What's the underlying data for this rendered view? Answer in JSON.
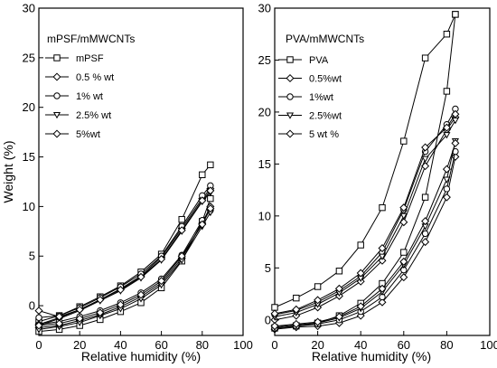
{
  "chart_data": [
    {
      "type": "line",
      "legend_title": "mPSF/mMWCNTs",
      "xlabel": "Relative humidity (%)",
      "ylabel": "Weight (%)",
      "xlim": [
        0,
        100
      ],
      "ylim": [
        -3,
        30
      ],
      "xticks": [
        0,
        20,
        40,
        60,
        80,
        100
      ],
      "yticks": [
        0,
        5,
        10,
        15,
        20,
        25,
        30
      ],
      "legend_placement": "top-left",
      "series": [
        {
          "name": "mPSF",
          "marker": "square",
          "adsorption": {
            "x": [
              0,
              10,
              20,
              30,
              40,
              50,
              60,
              70,
              80,
              84
            ],
            "y": [
              -2.6,
              -2.4,
              -2.0,
              -1.4,
              -0.6,
              0.3,
              1.8,
              4.5,
              8.5,
              10.8
            ]
          },
          "desorption": {
            "x": [
              84,
              80,
              70,
              60,
              50,
              40,
              30,
              20,
              10,
              0
            ],
            "y": [
              14.2,
              13.2,
              8.7,
              5.2,
              3.4,
              2.0,
              0.9,
              -0.1,
              -1.0,
              -1.6
            ]
          }
        },
        {
          "name": "0.5 % wt",
          "marker": "diamond",
          "adsorption": {
            "x": [
              0,
              10,
              20,
              30,
              40,
              50,
              60,
              70,
              80,
              84
            ],
            "y": [
              -2.2,
              -2.0,
              -1.5,
              -0.9,
              -0.1,
              0.9,
              2.3,
              4.8,
              8.3,
              10.0
            ]
          },
          "desorption": {
            "x": [
              84,
              80,
              70,
              60,
              50,
              40,
              30,
              20,
              10,
              0
            ],
            "y": [
              11.8,
              10.8,
              7.8,
              4.9,
              3.0,
              1.7,
              0.6,
              -0.4,
              -1.2,
              -1.9
            ]
          }
        },
        {
          "name": "1% wt",
          "marker": "circle",
          "adsorption": {
            "x": [
              0,
              10,
              20,
              30,
              40,
              50,
              60,
              70,
              80,
              84
            ],
            "y": [
              -1.9,
              -1.6,
              -1.1,
              -0.5,
              0.3,
              1.3,
              2.7,
              5.1,
              8.6,
              9.6
            ]
          },
          "desorption": {
            "x": [
              84,
              80,
              70,
              60,
              50,
              40,
              30,
              20,
              10,
              0
            ],
            "y": [
              12.1,
              11.1,
              8.0,
              5.0,
              3.2,
              1.9,
              0.8,
              -0.2,
              -1.0,
              -1.2
            ]
          }
        },
        {
          "name": "2.5% wt",
          "marker": "triangle-down",
          "adsorption": {
            "x": [
              0,
              10,
              20,
              30,
              40,
              50,
              60,
              70,
              80,
              84
            ],
            "y": [
              -2.4,
              -2.1,
              -1.7,
              -1.0,
              -0.3,
              0.7,
              2.1,
              4.6,
              8.0,
              9.4
            ]
          },
          "desorption": {
            "x": [
              84,
              80,
              70,
              60,
              50,
              40,
              30,
              20,
              10,
              0
            ],
            "y": [
              11.4,
              10.5,
              7.5,
              4.6,
              2.8,
              1.5,
              0.5,
              -0.5,
              -1.3,
              -2.0
            ]
          }
        },
        {
          "name": "5%wt",
          "marker": "diamond",
          "adsorption": {
            "x": [
              0,
              10,
              20,
              30,
              40,
              50,
              60,
              70,
              80,
              84
            ],
            "y": [
              -2.0,
              -1.8,
              -1.3,
              -0.7,
              0.1,
              1.1,
              2.5,
              5.0,
              8.2,
              9.8
            ]
          },
          "desorption": {
            "x": [
              84,
              80,
              70,
              60,
              50,
              40,
              30,
              20,
              10,
              0
            ],
            "y": [
              11.6,
              10.6,
              7.6,
              4.7,
              2.9,
              1.6,
              0.6,
              -0.4,
              -1.1,
              -0.5
            ]
          }
        }
      ]
    },
    {
      "type": "line",
      "legend_title": "PVA/mMWCNTs",
      "xlabel": "Relative humidity (%)",
      "ylabel": "",
      "xlim": [
        0,
        100
      ],
      "ylim": [
        -1.5,
        30
      ],
      "xticks": [
        0,
        20,
        40,
        60,
        80,
        100
      ],
      "yticks": [
        0,
        5,
        10,
        15,
        20,
        25,
        30
      ],
      "legend_placement": "top-left",
      "series": [
        {
          "name": "PVA",
          "marker": "square",
          "adsorption": {
            "x": [
              0,
              10,
              20,
              30,
              40,
              50,
              60,
              70,
              80,
              84
            ],
            "y": [
              -0.8,
              -0.6,
              -0.3,
              0.4,
              1.6,
              3.5,
              6.5,
              11.8,
              22.0,
              29.4
            ]
          },
          "desorption": {
            "x": [
              84,
              80,
              70,
              60,
              50,
              40,
              30,
              20,
              10,
              0
            ],
            "y": [
              29.4,
              27.5,
              25.2,
              17.2,
              10.8,
              7.2,
              4.7,
              3.2,
              2.1,
              1.2
            ]
          }
        },
        {
          "name": "0.5%wt",
          "marker": "diamond",
          "adsorption": {
            "x": [
              0,
              10,
              20,
              30,
              40,
              50,
              60,
              70,
              80,
              84
            ],
            "y": [
              -0.9,
              -0.7,
              -0.6,
              -0.3,
              0.4,
              1.7,
              4.1,
              7.5,
              11.8,
              15.7
            ]
          },
          "desorption": {
            "x": [
              84,
              80,
              70,
              60,
              50,
              40,
              30,
              20,
              10,
              0
            ],
            "y": [
              19.5,
              18.3,
              14.8,
              9.4,
              5.7,
              3.7,
              2.3,
              1.2,
              0.4,
              0.0
            ]
          }
        },
        {
          "name": "1%wt",
          "marker": "circle",
          "adsorption": {
            "x": [
              0,
              10,
              20,
              30,
              40,
              50,
              60,
              70,
              80,
              84
            ],
            "y": [
              -0.8,
              -0.6,
              -0.4,
              0.0,
              0.8,
              2.2,
              4.8,
              8.3,
              12.6,
              16.2
            ]
          },
          "desorption": {
            "x": [
              84,
              80,
              70,
              60,
              50,
              40,
              30,
              20,
              10,
              0
            ],
            "y": [
              20.3,
              18.8,
              16.2,
              10.6,
              6.5,
              4.2,
              2.8,
              1.7,
              0.9,
              0.5
            ]
          }
        },
        {
          "name": "2.5%wt",
          "marker": "triangle-down",
          "adsorption": {
            "x": [
              0,
              10,
              20,
              30,
              40,
              50,
              60,
              70,
              80,
              84
            ],
            "y": [
              -0.7,
              -0.5,
              -0.3,
              0.2,
              1.1,
              2.7,
              5.3,
              9.0,
              13.5,
              17.2
            ]
          },
          "desorption": {
            "x": [
              84,
              80,
              70,
              60,
              50,
              40,
              30,
              20,
              10,
              0
            ],
            "y": [
              19.2,
              17.8,
              15.5,
              10.0,
              6.1,
              4.0,
              2.6,
              1.5,
              0.7,
              0.3
            ]
          }
        },
        {
          "name": "5 wt %",
          "marker": "diamond",
          "adsorption": {
            "x": [
              0,
              10,
              20,
              30,
              40,
              50,
              60,
              70,
              80,
              84
            ],
            "y": [
              -0.6,
              -0.4,
              -0.2,
              0.3,
              1.3,
              3.0,
              5.6,
              9.5,
              14.5,
              17.0
            ]
          },
          "desorption": {
            "x": [
              84,
              80,
              70,
              60,
              50,
              40,
              30,
              20,
              10,
              0
            ],
            "y": [
              19.8,
              18.5,
              16.6,
              10.8,
              6.9,
              4.5,
              3.0,
              1.9,
              1.0,
              0.6
            ]
          }
        }
      ]
    }
  ]
}
